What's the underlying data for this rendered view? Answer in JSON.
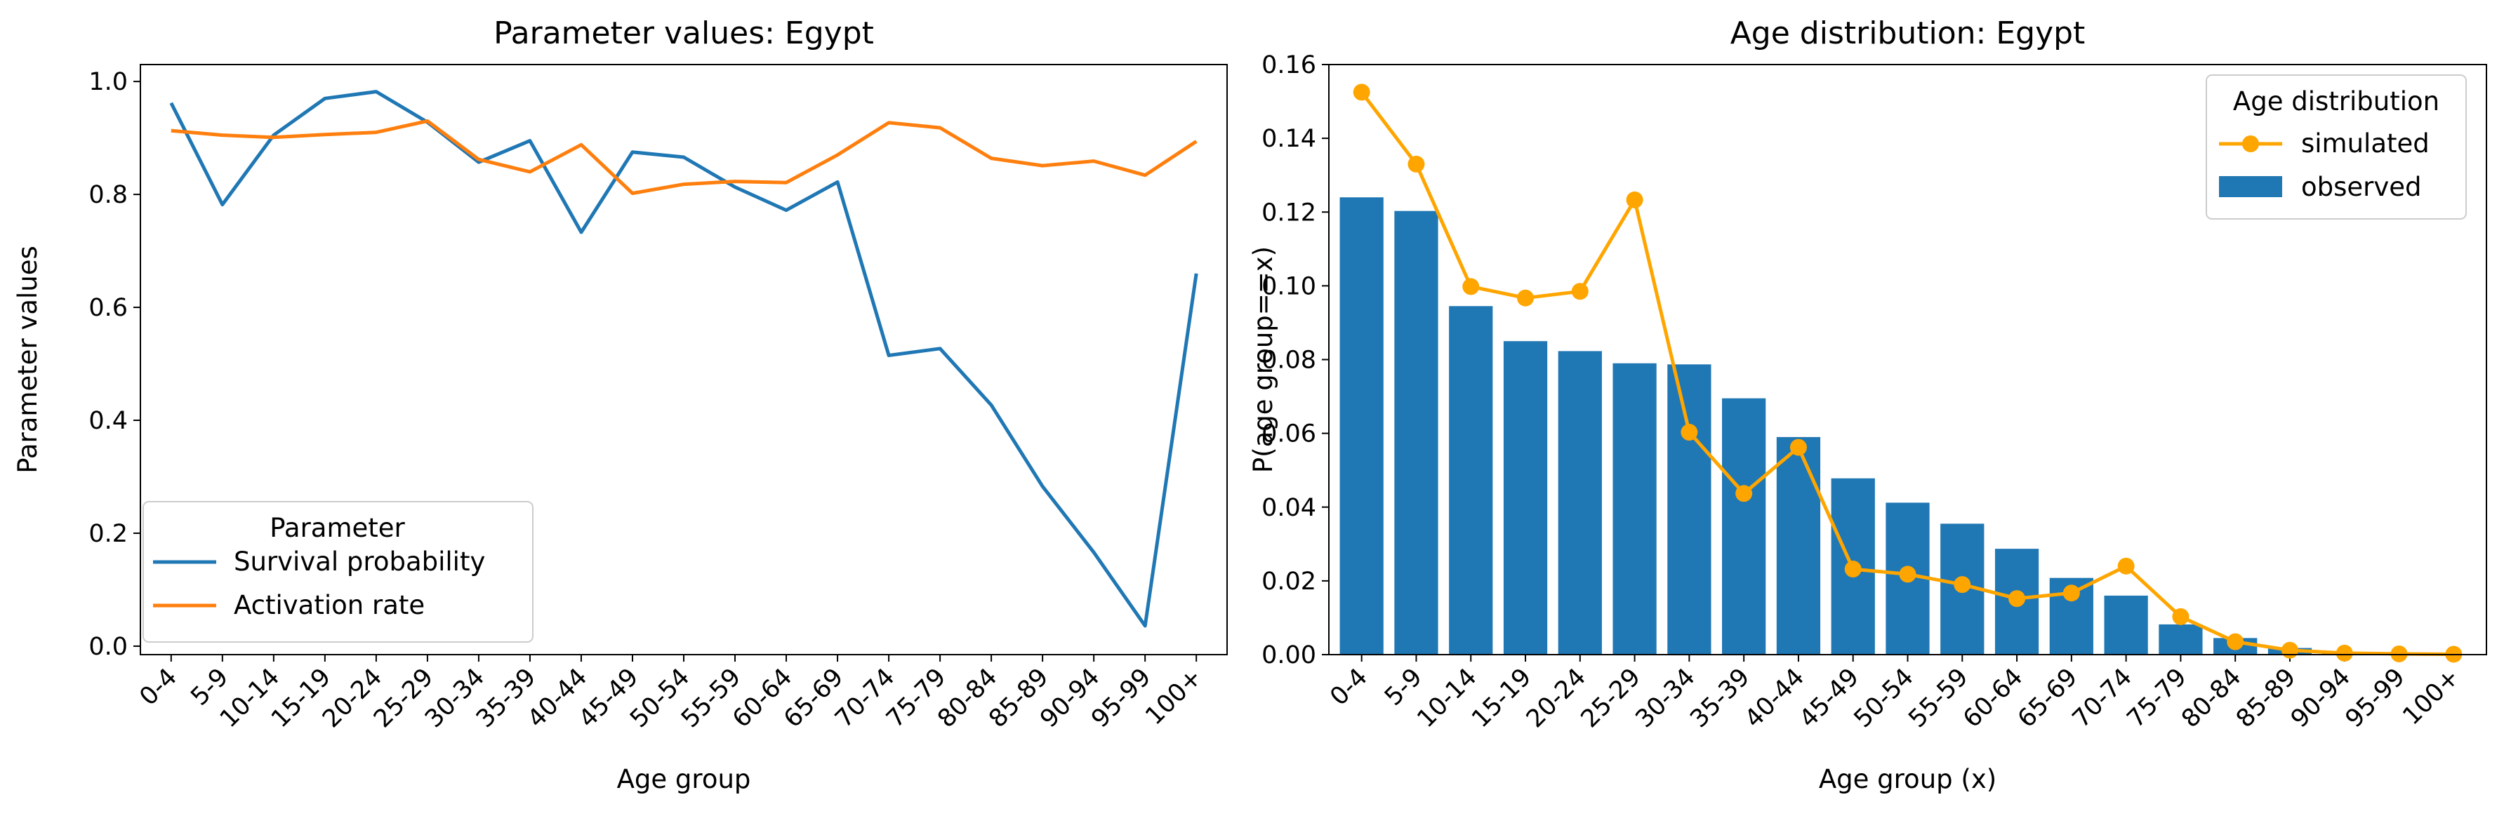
{
  "chart_data": [
    {
      "type": "line",
      "title": "Parameter values: Egypt",
      "xlabel": "Age group",
      "ylabel": "Parameter values",
      "categories": [
        "0-4",
        "5-9",
        "10-14",
        "15-19",
        "20-24",
        "25-29",
        "30-34",
        "35-39",
        "40-44",
        "45-49",
        "50-54",
        "55-59",
        "60-64",
        "65-69",
        "70-74",
        "75-79",
        "80-84",
        "85-89",
        "90-94",
        "95-99",
        "100+"
      ],
      "ylim": [
        -0.015,
        1.03
      ],
      "yticks": [
        0.0,
        0.2,
        0.4,
        0.6,
        0.8,
        1.0
      ],
      "ytick_labels": [
        "0.0",
        "0.2",
        "0.4",
        "0.6",
        "0.8",
        "1.0"
      ],
      "grid": false,
      "legend": {
        "title": "Parameter",
        "placement": "lower-left"
      },
      "series": [
        {
          "name": "Survival probability",
          "color": "#1f77b4",
          "values": [
            0.962,
            0.782,
            0.905,
            0.97,
            0.982,
            0.928,
            0.857,
            0.895,
            0.733,
            0.875,
            0.866,
            0.813,
            0.772,
            0.822,
            0.515,
            0.527,
            0.427,
            0.283,
            0.166,
            0.036,
            0.66
          ]
        },
        {
          "name": "Activation rate",
          "color": "#ff7f0e",
          "values": [
            0.913,
            0.905,
            0.901,
            0.906,
            0.91,
            0.93,
            0.862,
            0.84,
            0.888,
            0.802,
            0.818,
            0.823,
            0.821,
            0.87,
            0.927,
            0.918,
            0.864,
            0.851,
            0.859,
            0.834,
            0.894
          ]
        }
      ]
    },
    {
      "type": "bar",
      "title": "Age distribution: Egypt",
      "xlabel": "Age group (x)",
      "ylabel": "P(age group==x)",
      "categories": [
        "0-4",
        "5-9",
        "10-14",
        "15-19",
        "20-24",
        "25-29",
        "30-34",
        "35-39",
        "40-44",
        "45-49",
        "50-54",
        "55-59",
        "60-64",
        "65-69",
        "70-74",
        "75-79",
        "80-84",
        "85-89",
        "90-94",
        "95-99",
        "100+"
      ],
      "ylim": [
        0,
        0.16
      ],
      "yticks": [
        0.0,
        0.02,
        0.04,
        0.06,
        0.08,
        0.1,
        0.12,
        0.14,
        0.16
      ],
      "ytick_labels": [
        "0.00",
        "0.02",
        "0.04",
        "0.06",
        "0.08",
        "0.10",
        "0.12",
        "0.14",
        "0.16"
      ],
      "grid": false,
      "legend": {
        "title": "Age distribution",
        "placement": "top-right"
      },
      "series": [
        {
          "name": "simulated",
          "kind": "line-marker",
          "color": "#ffa500",
          "values": [
            0.1525,
            0.133,
            0.0998,
            0.0967,
            0.0985,
            0.1233,
            0.0603,
            0.0437,
            0.0562,
            0.0232,
            0.0218,
            0.019,
            0.0152,
            0.0167,
            0.024,
            0.0103,
            0.0035,
            0.0012,
            0.0004,
            0.0002,
            0.0001
          ]
        },
        {
          "name": "observed",
          "kind": "bar",
          "color": "#1f77b4",
          "values": [
            0.124,
            0.1203,
            0.0945,
            0.085,
            0.0823,
            0.079,
            0.0787,
            0.0695,
            0.059,
            0.0478,
            0.0412,
            0.0355,
            0.0287,
            0.0208,
            0.016,
            0.0082,
            0.0045,
            0.0018,
            0.0007,
            0.0002,
            0.0001
          ]
        }
      ]
    }
  ]
}
